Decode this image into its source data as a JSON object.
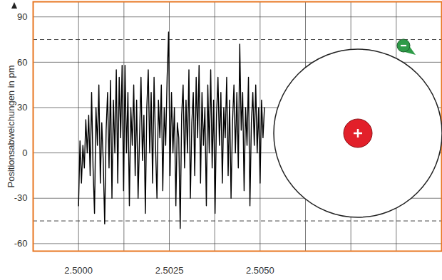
{
  "chart_data": {
    "type": "line",
    "y_label": "Positionsabweichungen in pm",
    "x": [
      2.5,
      2.50004,
      2.50008,
      2.50012,
      2.50016,
      2.5002,
      2.50024,
      2.50028,
      2.50032,
      2.50036,
      2.5004,
      2.50044,
      2.50048,
      2.50052,
      2.50056,
      2.5006,
      2.50064,
      2.50068,
      2.50072,
      2.50076,
      2.5008,
      2.50084,
      2.50088,
      2.50092,
      2.50096,
      2.501,
      2.50104,
      2.50108,
      2.50112,
      2.50116,
      2.5012,
      2.50124,
      2.50128,
      2.50132,
      2.50136,
      2.5014,
      2.50144,
      2.50148,
      2.50152,
      2.50156,
      2.5016,
      2.50164,
      2.50168,
      2.50172,
      2.50176,
      2.5018,
      2.50184,
      2.50188,
      2.50192,
      2.50196,
      2.502,
      2.50204,
      2.50208,
      2.50212,
      2.50216,
      2.5022,
      2.50224,
      2.50228,
      2.50232,
      2.50236,
      2.5024,
      2.50244,
      2.50248,
      2.50252,
      2.50256,
      2.5026,
      2.50264,
      2.50268,
      2.50272,
      2.50276,
      2.5028,
      2.50284,
      2.50288,
      2.50292,
      2.50296,
      2.503,
      2.50304,
      2.50308,
      2.50312,
      2.50316,
      2.5032,
      2.50324,
      2.50328,
      2.50332,
      2.50336,
      2.5034,
      2.50344,
      2.50348,
      2.50352,
      2.50356,
      2.5036,
      2.50364,
      2.50368,
      2.50372,
      2.50376,
      2.5038,
      2.50384,
      2.50388,
      2.50392,
      2.50396,
      2.504,
      2.50404,
      2.50408,
      2.50412,
      2.50416,
      2.5042,
      2.50424,
      2.50428,
      2.50432,
      2.50436,
      2.5044,
      2.50444,
      2.50448,
      2.50452,
      2.50456,
      2.5046,
      2.50464,
      2.50468,
      2.50472,
      2.50476,
      2.5048,
      2.50484,
      2.50488,
      2.50492,
      2.50496,
      2.505,
      2.50504,
      2.50508,
      2.50512
    ],
    "values": [
      -35,
      8,
      -20,
      5,
      -10,
      22,
      0,
      25,
      -15,
      40,
      -10,
      -40,
      30,
      5,
      45,
      -20,
      20,
      -5,
      -47,
      15,
      40,
      -10,
      48,
      -30,
      35,
      0,
      55,
      -20,
      50,
      10,
      58,
      -25,
      58,
      0,
      40,
      -35,
      30,
      5,
      45,
      -15,
      35,
      -30,
      10,
      50,
      -5,
      25,
      -40,
      30,
      55,
      0,
      40,
      -20,
      50,
      5,
      -30,
      35,
      10,
      45,
      -25,
      30,
      5,
      50,
      80,
      -15,
      40,
      0,
      30,
      -35,
      20,
      10,
      -50,
      25,
      45,
      -10,
      35,
      0,
      55,
      -30,
      20,
      40,
      -15,
      50,
      10,
      58,
      -20,
      40,
      5,
      30,
      -35,
      45,
      0,
      55,
      -10,
      35,
      -40,
      25,
      50,
      5,
      40,
      -20,
      30,
      10,
      50,
      -15,
      35,
      -30,
      20,
      45,
      0,
      40,
      -10,
      72,
      15,
      40,
      -25,
      30,
      5,
      50,
      -35,
      20,
      40,
      5,
      45,
      0,
      30,
      -20,
      35,
      10,
      30
    ],
    "color": "#000000",
    "xlim": [
      2.49875,
      2.51
    ],
    "ylim": [
      -65,
      100
    ],
    "xticks": [
      {
        "value": 2.5,
        "label": "2.5000"
      },
      {
        "value": 2.50125,
        "label": null
      },
      {
        "value": 2.5025,
        "label": "2.5025"
      },
      {
        "value": 2.50375,
        "label": null
      },
      {
        "value": 2.505,
        "label": "2.5050"
      },
      {
        "value": 2.50625,
        "label": null
      },
      {
        "value": 2.5075,
        "label": null
      },
      {
        "value": 2.50875,
        "label": null
      }
    ],
    "yticks": [
      -60,
      -30,
      0,
      30,
      60,
      90
    ],
    "dashed_lines": [
      75,
      -45
    ],
    "grid": true
  }
}
